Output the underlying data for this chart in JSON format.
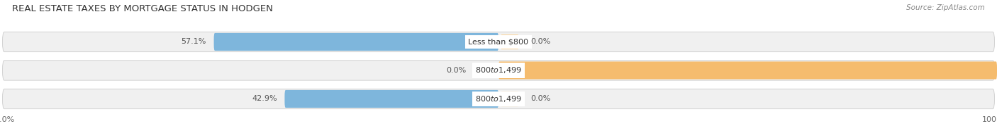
{
  "title": "REAL ESTATE TAXES BY MORTGAGE STATUS IN HODGEN",
  "source": "Source: ZipAtlas.com",
  "rows": [
    {
      "label": "Less than $800",
      "without_mortgage": 57.1,
      "with_mortgage": 0.0
    },
    {
      "label": "$800 to $1,499",
      "without_mortgage": 0.0,
      "with_mortgage": 100.0
    },
    {
      "label": "$800 to $1,499",
      "without_mortgage": 42.9,
      "with_mortgage": 0.0
    }
  ],
  "color_without": "#7EB6DC",
  "color_with": "#F5BC6E",
  "color_without_light": "#C8DFF2",
  "color_with_light": "#FAD9A8",
  "bar_row_bg": "#F0F0F0",
  "bar_row_border": "#CCCCCC",
  "max_val": 100.0,
  "title_fontsize": 9.5,
  "source_fontsize": 7.5,
  "label_fontsize": 8,
  "pct_fontsize": 8,
  "tick_fontsize": 8,
  "legend_fontsize": 8.5
}
